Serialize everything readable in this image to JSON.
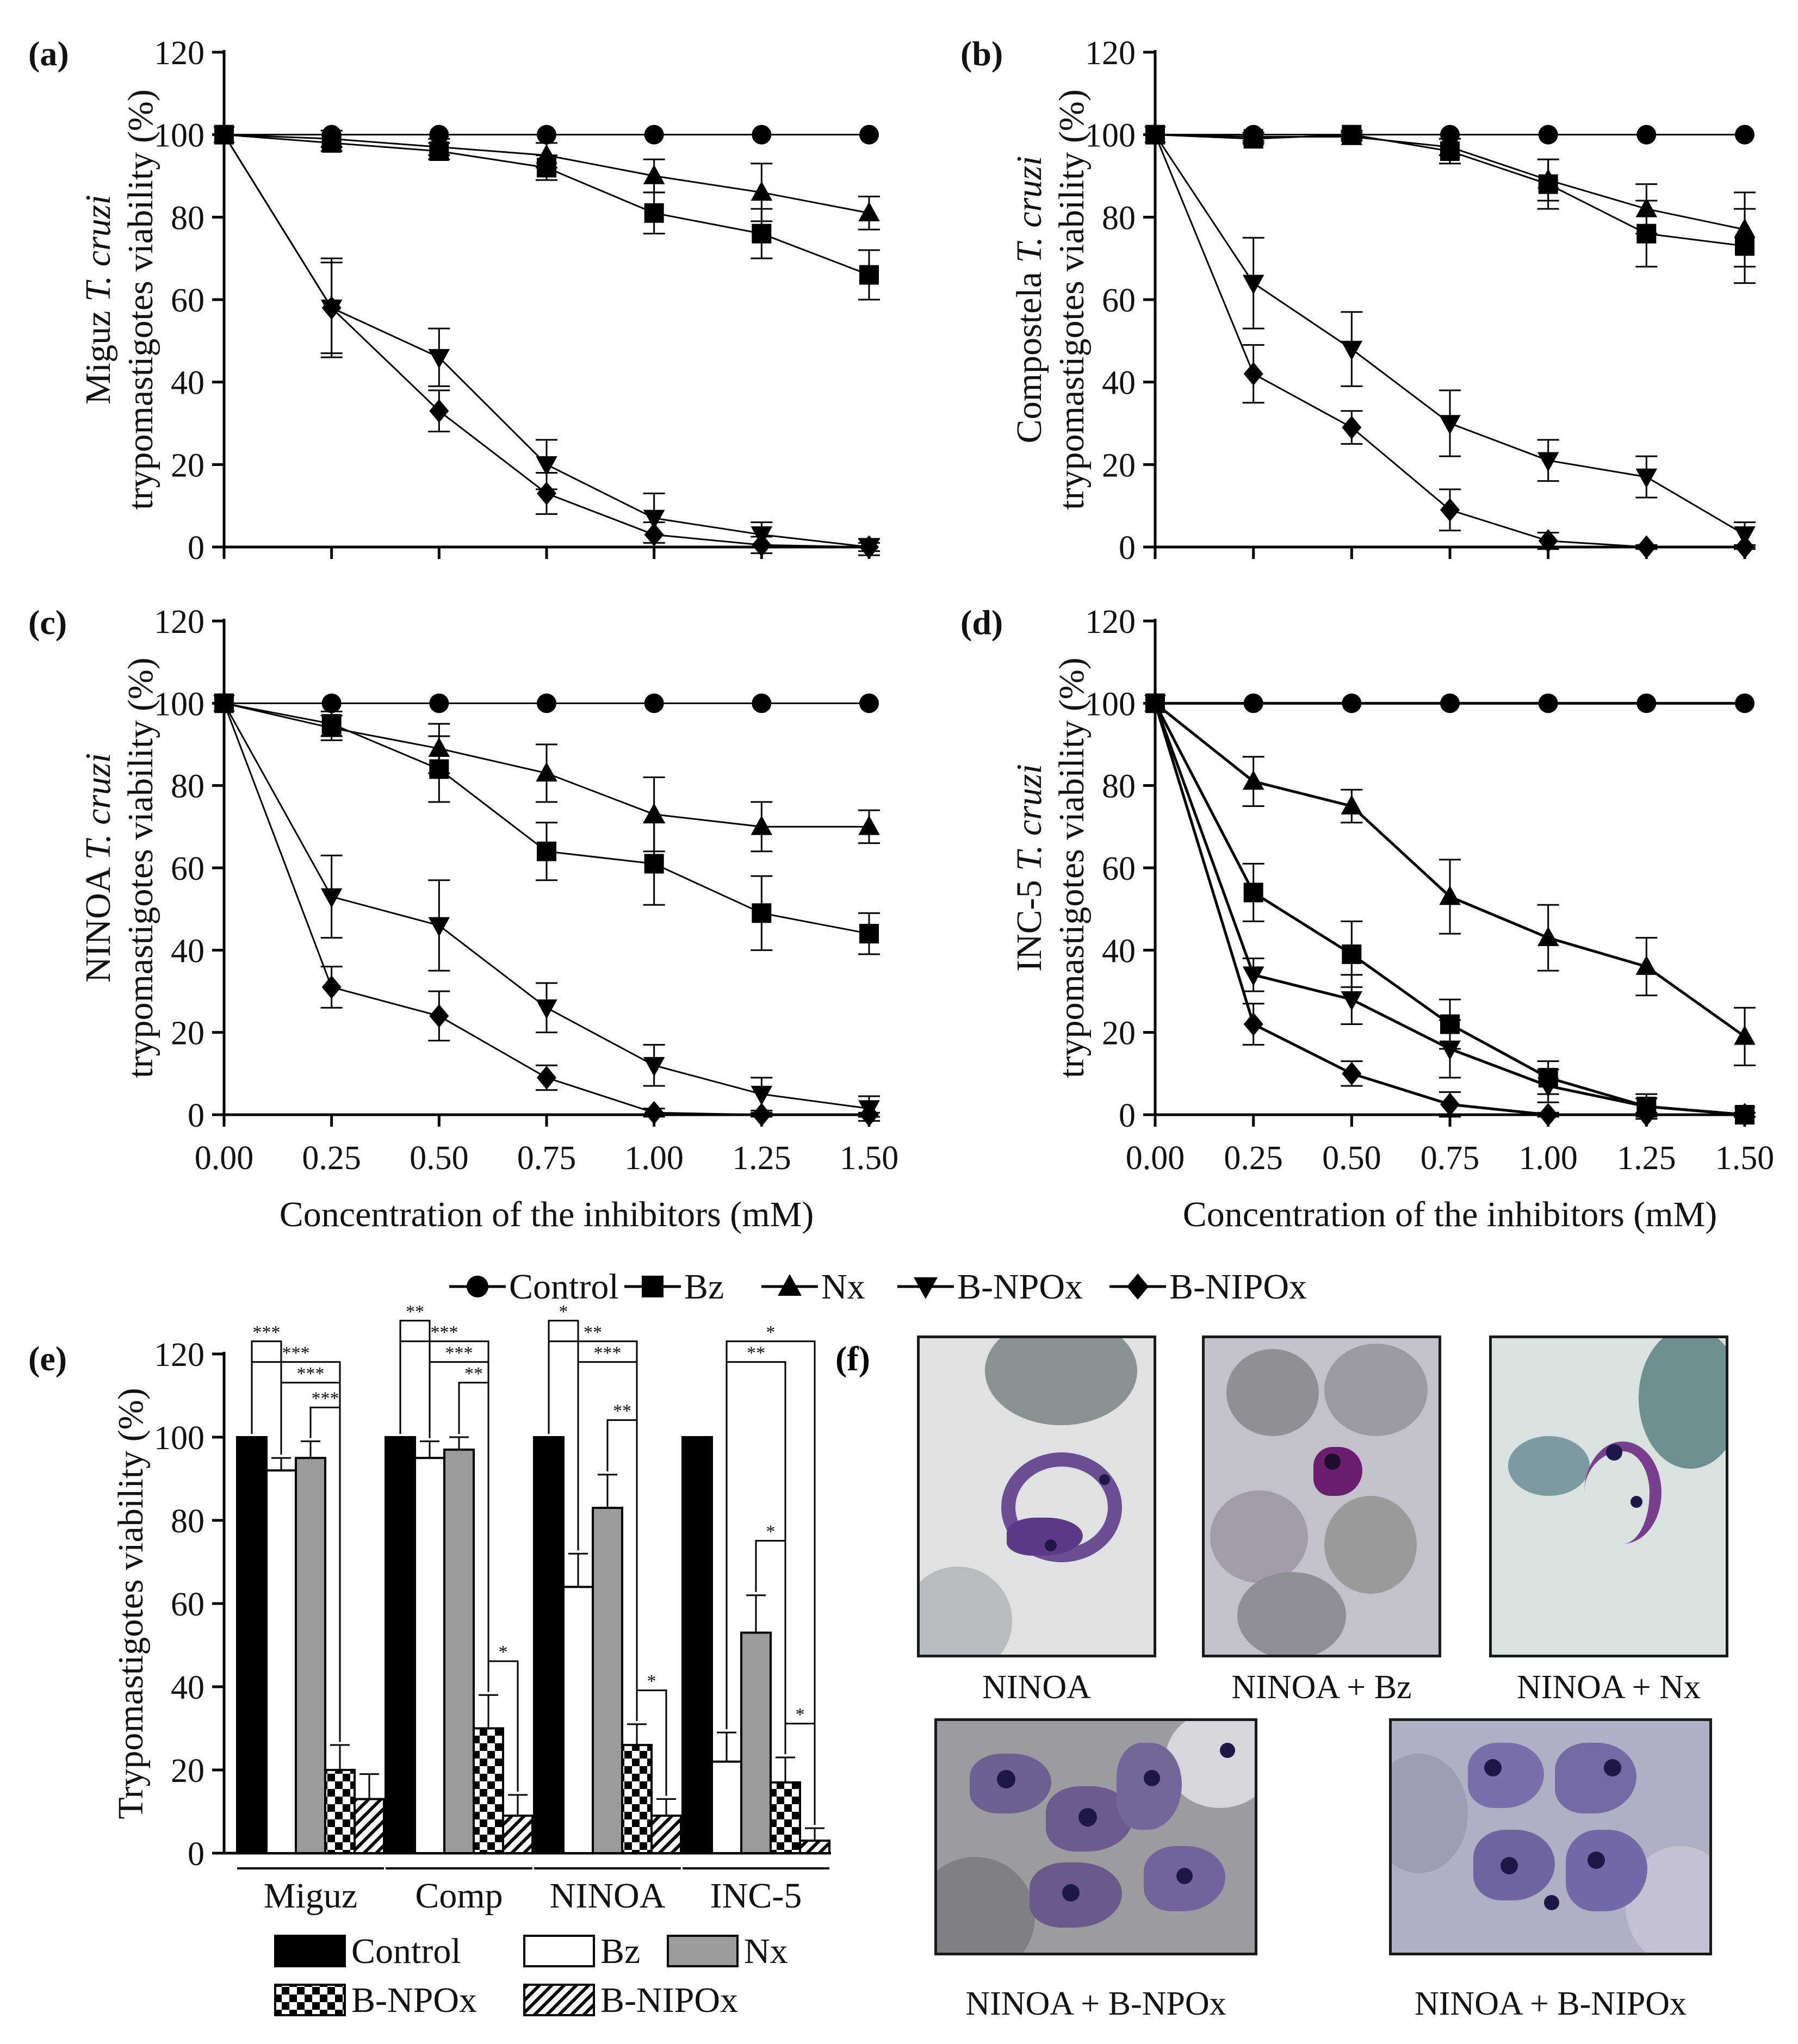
{
  "panel_labels": [
    "(a)",
    "(b)",
    "(c)",
    "(d)",
    "(e)",
    "(f)"
  ],
  "x_axis_label": "Concentration of the inhibitors (mM)",
  "line_legend": [
    "Control",
    "Bz",
    "Nx",
    "B-NPOx",
    "B-NIPOx"
  ],
  "bar_legend": [
    "Control",
    "Bz",
    "Nx",
    "B-NPOx",
    "B-NIPOx"
  ],
  "micrographs": {
    "captions": [
      "NINOA",
      "NINOA + Bz",
      "NINOA + Nx",
      "NINOA + B-NPOx",
      "NINOA + B-NIPOx"
    ]
  },
  "chart_data": [
    {
      "panel": "(a)",
      "type": "line",
      "ylabel_lines": [
        "Miguz T. cruzi",
        "trypomastigotes viability (%)"
      ],
      "x": [
        0.0,
        0.25,
        0.5,
        0.75,
        1.0,
        1.25,
        1.5
      ],
      "x_tick_labels": [
        "0.00",
        "0.25",
        "0.50",
        "0.75",
        "1.00",
        "1.25",
        "1.50"
      ],
      "ylim": [
        0,
        120
      ],
      "y_ticks": [
        0,
        20,
        40,
        60,
        80,
        100,
        120
      ],
      "series": [
        {
          "name": "Control",
          "marker": "circle",
          "values": [
            100,
            100,
            100,
            100,
            100,
            100,
            100
          ],
          "errors": [
            0,
            0,
            0,
            0,
            0,
            0,
            0
          ]
        },
        {
          "name": "Bz",
          "marker": "square",
          "values": [
            100,
            98,
            96,
            92,
            81,
            76,
            66
          ],
          "errors": [
            0,
            2,
            2,
            3,
            5,
            6,
            6
          ]
        },
        {
          "name": "Nx",
          "marker": "triangle-up",
          "values": [
            100,
            99,
            97,
            95,
            90,
            86,
            81
          ],
          "errors": [
            0,
            2,
            2,
            3,
            4,
            7,
            4
          ]
        },
        {
          "name": "B-NPOx",
          "marker": "triangle-down",
          "values": [
            100,
            58,
            46,
            20,
            7,
            3,
            0
          ],
          "errors": [
            0,
            12,
            7,
            6,
            6,
            3,
            2
          ]
        },
        {
          "name": "B-NIPOx",
          "marker": "diamond",
          "values": [
            100,
            58,
            33,
            13,
            3,
            0.5,
            0
          ],
          "errors": [
            0,
            11,
            5,
            5,
            3,
            2,
            1
          ]
        }
      ]
    },
    {
      "panel": "(b)",
      "type": "line",
      "ylabel_lines": [
        "Compostela T. cruzi",
        "trypomastigotes viability (%)"
      ],
      "x": [
        0.0,
        0.25,
        0.5,
        0.75,
        1.0,
        1.25,
        1.5
      ],
      "x_tick_labels": [
        "0.00",
        "0.25",
        "0.50",
        "0.75",
        "1.00",
        "1.25",
        "1.50"
      ],
      "ylim": [
        0,
        120
      ],
      "y_ticks": [
        0,
        20,
        40,
        60,
        80,
        100,
        120
      ],
      "series": [
        {
          "name": "Control",
          "marker": "circle",
          "values": [
            100,
            100,
            100,
            100,
            100,
            100,
            100
          ],
          "errors": [
            0,
            0,
            0,
            0,
            0,
            0,
            0
          ]
        },
        {
          "name": "Bz",
          "marker": "square",
          "values": [
            100,
            99,
            100,
            96,
            88,
            76,
            73
          ],
          "errors": [
            0,
            1,
            1,
            3,
            6,
            8,
            9
          ]
        },
        {
          "name": "Nx",
          "marker": "triangle-up",
          "values": [
            100,
            99.5,
            99.5,
            97,
            89,
            82,
            77
          ],
          "errors": [
            0,
            1,
            1,
            2,
            5,
            6,
            9
          ]
        },
        {
          "name": "B-NPOx",
          "marker": "triangle-down",
          "values": [
            100,
            64,
            48,
            30,
            21,
            17,
            3
          ],
          "errors": [
            0,
            11,
            9,
            8,
            5,
            5,
            3
          ]
        },
        {
          "name": "B-NIPOx",
          "marker": "diamond",
          "values": [
            100,
            42,
            29,
            9,
            1.5,
            0,
            0
          ],
          "errors": [
            0,
            7,
            4,
            5,
            2,
            0.5,
            0.5
          ]
        }
      ]
    },
    {
      "panel": "(c)",
      "type": "line",
      "ylabel_lines": [
        "NINOA T. cruzi",
        "trypomastigotes viability (%)"
      ],
      "x": [
        0.0,
        0.25,
        0.5,
        0.75,
        1.0,
        1.25,
        1.5
      ],
      "x_tick_labels": [
        "0.00",
        "0.25",
        "0.50",
        "0.75",
        "1.00",
        "1.25",
        "1.50"
      ],
      "ylim": [
        0,
        120
      ],
      "y_ticks": [
        0,
        20,
        40,
        60,
        80,
        100,
        120
      ],
      "series": [
        {
          "name": "Control",
          "marker": "circle",
          "values": [
            100,
            100,
            100,
            100,
            100,
            100,
            100
          ],
          "errors": [
            0,
            0,
            0,
            0,
            0,
            0,
            0
          ]
        },
        {
          "name": "Bz",
          "marker": "square",
          "values": [
            100,
            95,
            84,
            64,
            61,
            49,
            44
          ],
          "errors": [
            0,
            3,
            8,
            7,
            10,
            9,
            5
          ]
        },
        {
          "name": "Nx",
          "marker": "triangle-up",
          "values": [
            100,
            94,
            89,
            83,
            73,
            70,
            70
          ],
          "errors": [
            0,
            3,
            6,
            7,
            9,
            6,
            4
          ]
        },
        {
          "name": "B-NPOx",
          "marker": "triangle-down",
          "values": [
            100,
            53,
            46,
            26,
            12,
            5,
            1.5
          ],
          "errors": [
            0,
            10,
            11,
            6,
            5,
            4,
            3
          ]
        },
        {
          "name": "B-NIPOx",
          "marker": "diamond",
          "values": [
            100,
            31,
            24,
            9,
            0.5,
            0,
            0
          ],
          "errors": [
            0,
            5,
            6,
            3,
            1,
            0.5,
            0.5
          ]
        }
      ]
    },
    {
      "panel": "(d)",
      "type": "line",
      "ylabel_lines": [
        "INC-5 T. cruzi",
        "trypomastigotes viability (%)"
      ],
      "x": [
        0.0,
        0.25,
        0.5,
        0.75,
        1.0,
        1.25,
        1.5
      ],
      "x_tick_labels": [
        "0.00",
        "0.25",
        "0.50",
        "0.75",
        "1.00",
        "1.25",
        "1.50"
      ],
      "ylim": [
        0,
        120
      ],
      "y_ticks": [
        0,
        20,
        40,
        60,
        80,
        100,
        120
      ],
      "series": [
        {
          "name": "Control",
          "marker": "circle",
          "values": [
            100,
            100,
            100,
            100,
            100,
            100,
            100
          ],
          "errors": [
            0,
            0,
            0,
            0,
            0,
            0,
            0
          ]
        },
        {
          "name": "Bz",
          "marker": "square",
          "values": [
            100,
            54,
            39,
            22,
            9,
            2,
            0
          ],
          "errors": [
            0,
            7,
            8,
            6,
            4,
            3,
            0.5
          ]
        },
        {
          "name": "Nx",
          "marker": "triangle-up",
          "values": [
            100,
            81,
            75,
            53,
            43,
            36,
            19
          ],
          "errors": [
            0,
            6,
            4,
            9,
            8,
            7,
            7
          ]
        },
        {
          "name": "B-NPOx",
          "marker": "triangle-down",
          "values": [
            100,
            34,
            28,
            16,
            7,
            2,
            0
          ],
          "errors": [
            0,
            4,
            6,
            7,
            4,
            2,
            0.5
          ]
        },
        {
          "name": "B-NIPOx",
          "marker": "diamond",
          "values": [
            100,
            22,
            10,
            2.5,
            0,
            0,
            0
          ],
          "errors": [
            0,
            5,
            3,
            3,
            0.5,
            0.5,
            0.5
          ]
        }
      ]
    },
    {
      "panel": "(e)",
      "type": "bar",
      "ylabel": "Trypomastigotes viability (%)",
      "categories": [
        "Miguz",
        "Comp",
        "NINOA",
        "INC-5"
      ],
      "ylim": [
        0,
        120
      ],
      "y_ticks": [
        0,
        20,
        40,
        60,
        80,
        100,
        120
      ],
      "series": [
        {
          "name": "Control",
          "pattern": "black",
          "values": [
            100,
            100,
            100,
            100
          ],
          "errors": [
            0,
            0,
            0,
            0
          ]
        },
        {
          "name": "Bz",
          "pattern": "white",
          "values": [
            92,
            95,
            64,
            22
          ],
          "errors": [
            3,
            4,
            8,
            7
          ]
        },
        {
          "name": "Nx",
          "pattern": "gray",
          "values": [
            95,
            97,
            83,
            53
          ],
          "errors": [
            4,
            3,
            8,
            9
          ]
        },
        {
          "name": "B-NPOx",
          "pattern": "checker",
          "values": [
            20,
            30,
            26,
            17
          ],
          "errors": [
            6,
            8,
            5,
            6
          ]
        },
        {
          "name": "B-NIPOx",
          "pattern": "hatch",
          "values": [
            13,
            9,
            9,
            3
          ],
          "errors": [
            6,
            5,
            4,
            3
          ]
        }
      ],
      "significance": [
        {
          "group": 0,
          "from": 0,
          "to": 1,
          "label": "***"
        },
        {
          "group": 0,
          "from": 0,
          "to": 3,
          "label": "***"
        },
        {
          "group": 0,
          "from": 1,
          "to": 3,
          "label": "***"
        },
        {
          "group": 0,
          "from": 2,
          "to": 3,
          "label": "***"
        },
        {
          "group": 1,
          "from": 0,
          "to": 1,
          "label": "**"
        },
        {
          "group": 1,
          "from": 0,
          "to": 3,
          "label": "***"
        },
        {
          "group": 1,
          "from": 1,
          "to": 3,
          "label": "***"
        },
        {
          "group": 1,
          "from": 2,
          "to": 3,
          "label": "**"
        },
        {
          "group": 1,
          "from": 3,
          "to": 4,
          "label": "*"
        },
        {
          "group": 2,
          "from": 0,
          "to": 1,
          "label": "*"
        },
        {
          "group": 2,
          "from": 0,
          "to": 3,
          "label": "**"
        },
        {
          "group": 2,
          "from": 1,
          "to": 3,
          "label": "***"
        },
        {
          "group": 2,
          "from": 2,
          "to": 3,
          "label": "**"
        },
        {
          "group": 2,
          "from": 3,
          "to": 4,
          "label": "*"
        },
        {
          "group": 3,
          "from": 1,
          "to": 4,
          "label": "*"
        },
        {
          "group": 3,
          "from": 1,
          "to": 3,
          "label": "**"
        },
        {
          "group": 3,
          "from": 2,
          "to": 3,
          "label": "*"
        },
        {
          "group": 3,
          "from": 3,
          "to": 4,
          "label": "*"
        }
      ]
    }
  ]
}
